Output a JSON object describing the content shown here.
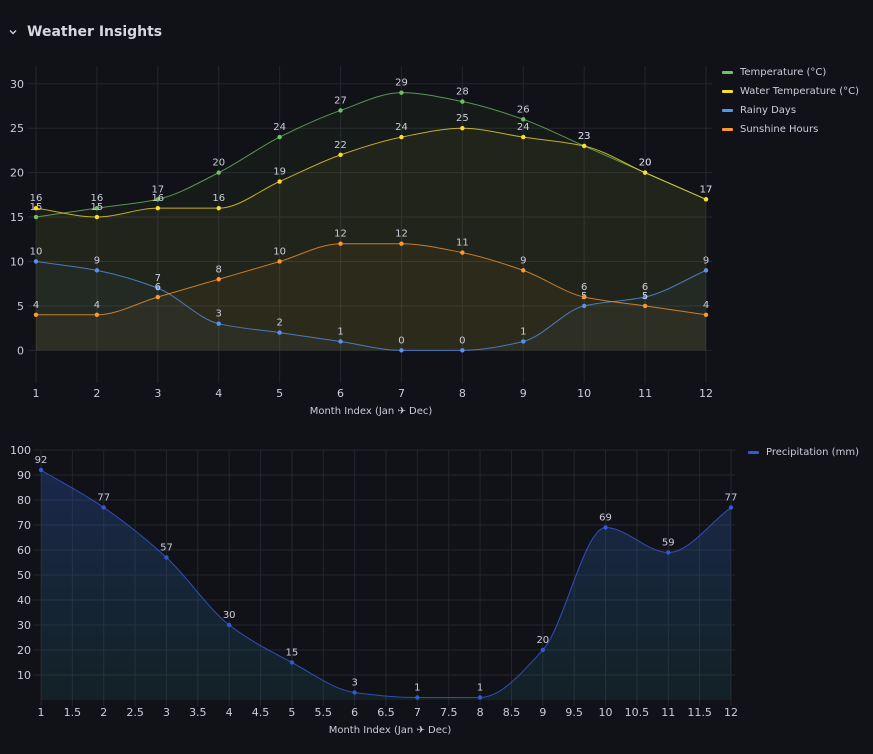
{
  "row": {
    "title": "Weather Insights",
    "collapse_icon": "chevron-down-icon"
  },
  "chart_data": [
    {
      "type": "line",
      "title": "",
      "xlabel": "Month Index (Jan ✈ Dec)",
      "ylabel": "",
      "x": [
        1,
        2,
        3,
        4,
        5,
        6,
        7,
        8,
        9,
        10,
        11,
        12
      ],
      "xticks": [
        "1",
        "2",
        "3",
        "4",
        "5",
        "6",
        "7",
        "8",
        "9",
        "10",
        "11",
        "12"
      ],
      "yticks": [
        "0",
        "5",
        "10",
        "15",
        "20",
        "25",
        "30"
      ],
      "ylim": [
        -3,
        32
      ],
      "grid": true,
      "legend_position": "right",
      "series": [
        {
          "name": "Temperature (°C)",
          "color": "#73bf69",
          "values": [
            15,
            16,
            17,
            20,
            24,
            27,
            29,
            28,
            26,
            23,
            20,
            17
          ],
          "labels": [
            "15",
            "16",
            "17",
            "20",
            "24",
            "27",
            "29",
            "28",
            "26",
            "23",
            "20",
            "17"
          ]
        },
        {
          "name": "Water Temperature (°C)",
          "color": "#fade2a",
          "values": [
            16,
            15,
            16,
            16,
            19,
            22,
            24,
            25,
            24,
            23,
            20,
            17
          ],
          "labels": [
            "16",
            "15",
            "16",
            "16",
            "19",
            "22",
            "24",
            "25",
            "24",
            "23",
            "20",
            "17"
          ]
        },
        {
          "name": "Rainy Days",
          "color": "#5794f2",
          "values": [
            10,
            9,
            7,
            3,
            2,
            1,
            0,
            0,
            1,
            5,
            6,
            9
          ],
          "labels": [
            "10",
            "9",
            "7",
            "3",
            "2",
            "1",
            "0",
            "0",
            "1",
            "5",
            "6",
            "9"
          ]
        },
        {
          "name": "Sunshine Hours",
          "color": "#ff9830",
          "values": [
            4,
            4,
            6,
            8,
            10,
            12,
            12,
            11,
            9,
            6,
            5,
            4
          ],
          "labels": [
            "4",
            "4",
            "6",
            "8",
            "10",
            "12",
            "12",
            "11",
            "9",
            "6",
            "5",
            "4"
          ]
        }
      ]
    },
    {
      "type": "area",
      "title": "",
      "xlabel": "Month Index (Jan ✈ Dec)",
      "ylabel": "",
      "x": [
        1,
        2,
        3,
        4,
        5,
        6,
        7,
        8,
        9,
        10,
        11,
        12
      ],
      "xticks": [
        "1",
        "1.5",
        "2",
        "2.5",
        "3",
        "3.5",
        "4",
        "4.5",
        "5",
        "5.5",
        "6",
        "6.5",
        "7",
        "7.5",
        "8",
        "8.5",
        "9",
        "9.5",
        "10",
        "10.5",
        "11",
        "11.5",
        "12"
      ],
      "yticks": [
        "10",
        "20",
        "30",
        "40",
        "50",
        "60",
        "70",
        "80",
        "90",
        "100"
      ],
      "ylim": [
        0,
        100
      ],
      "grid": true,
      "legend_position": "right",
      "series": [
        {
          "name": "Precipitation (mm)",
          "color": "#3358d4",
          "values": [
            92,
            77,
            57,
            30,
            15,
            3,
            1,
            1,
            20,
            69,
            59,
            77
          ],
          "labels": [
            "92",
            "77",
            "57",
            "30",
            "15",
            "3",
            "1",
            "1",
            "20",
            "69",
            "59",
            "77"
          ]
        }
      ]
    }
  ]
}
